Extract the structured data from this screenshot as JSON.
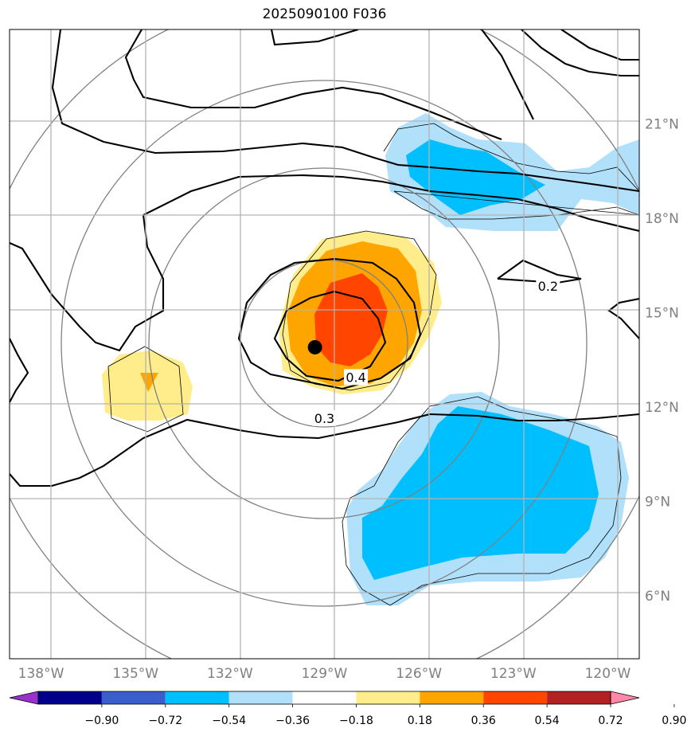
{
  "title": "2025090100 F036",
  "map": {
    "lon_range": [
      -139.0,
      -119.0
    ],
    "lat_range": [
      4.0,
      24.0
    ],
    "lon_ticks": [
      {
        "value": -138,
        "label": "138°W"
      },
      {
        "value": -135,
        "label": "135°W"
      },
      {
        "value": -132,
        "label": "132°W"
      },
      {
        "value": -129,
        "label": "129°W"
      },
      {
        "value": -126,
        "label": "126°W"
      },
      {
        "value": -123,
        "label": "123°W"
      },
      {
        "value": -120,
        "label": "120°W"
      }
    ],
    "lat_ticks": [
      {
        "value": 21,
        "label": "21°N"
      },
      {
        "value": 18,
        "label": "18°N"
      },
      {
        "value": 15,
        "label": "15°N"
      },
      {
        "value": 12,
        "label": "12°N"
      },
      {
        "value": 9,
        "label": "9°N"
      },
      {
        "value": 6,
        "label": "6°N"
      }
    ],
    "storm_center": {
      "lon": -129.3,
      "lat": 13.9
    },
    "contour_labels": [
      {
        "text": "0.2",
        "lon": -121.9,
        "lat": 15.8
      },
      {
        "text": "0.4",
        "lon": -128.0,
        "lat": 12.9
      },
      {
        "text": "0.3",
        "lon": -129.0,
        "lat": 11.6
      }
    ]
  },
  "colorbar": {
    "levels": [
      "−0.90",
      "−0.72",
      "−0.54",
      "−0.36",
      "−0.18",
      "0.18",
      "0.36",
      "0.54",
      "0.72",
      "0.90"
    ],
    "colors": [
      "#9932cc",
      "#00008b",
      "#3a5fcd",
      "#00bfff",
      "#b0e0fa",
      "#ffffff",
      "#ffec8b",
      "#ffa500",
      "#ff4500",
      "#b22222",
      "#ff88aa"
    ]
  }
}
